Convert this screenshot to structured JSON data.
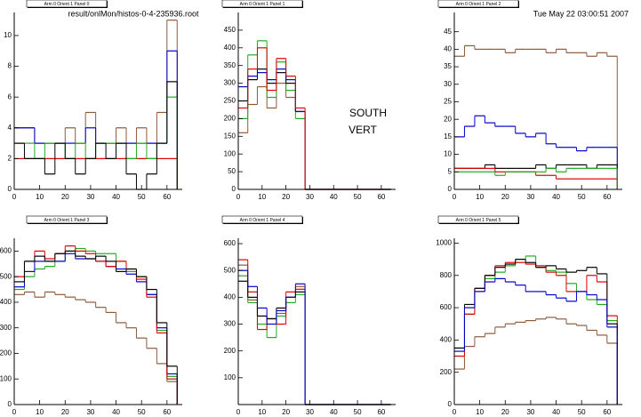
{
  "header": {
    "file": "result/onlMon/histos-0-4-235936.root",
    "timestamp": "Tue May 22 03:00:51 2007"
  },
  "label": {
    "line1": "SOUTH",
    "line2": "VERT"
  },
  "chart_data": [
    {
      "type": "histogram",
      "title": "Arm 0 Orient 1 Panel 0",
      "bins": [
        0,
        4,
        8,
        12,
        16,
        20,
        24,
        28,
        32,
        36,
        40,
        44,
        48,
        52,
        56,
        60,
        64
      ],
      "xlim": [
        0,
        66
      ],
      "xticks": [
        0,
        10,
        20,
        30,
        40,
        50,
        60
      ],
      "ylim": [
        0,
        11.5
      ],
      "yticks": [
        0,
        2,
        4,
        6,
        8,
        10
      ],
      "series": [
        {
          "color": "#8b5a3c",
          "values": [
            4,
            4,
            3,
            3,
            3,
            4,
            3,
            5,
            3,
            3,
            4,
            3,
            4,
            3,
            5,
            11
          ]
        },
        {
          "color": "#0000cc",
          "values": [
            4,
            4,
            3,
            3,
            3,
            3,
            3,
            4,
            3,
            3,
            3,
            3,
            3,
            3,
            3,
            9
          ]
        },
        {
          "color": "#dd0000",
          "values": [
            2,
            2,
            2,
            2,
            2,
            2,
            2,
            2,
            2,
            2,
            2,
            2,
            2,
            2,
            2,
            2
          ]
        },
        {
          "color": "#22aa22",
          "values": [
            3,
            3,
            2,
            3,
            3,
            2,
            3,
            2,
            3,
            3,
            3,
            2,
            3,
            2,
            3,
            6
          ]
        },
        {
          "color": "#000000",
          "values": [
            3,
            2,
            2,
            1,
            3,
            2,
            1,
            2,
            3,
            2,
            3,
            1,
            0,
            1,
            3,
            7
          ]
        }
      ]
    },
    {
      "type": "histogram",
      "title": "Arm 0 Orient 1 Panel 1",
      "bins": [
        0,
        4,
        8,
        12,
        16,
        20,
        24,
        28,
        32,
        36,
        40,
        44,
        48,
        52,
        56,
        60,
        64
      ],
      "xlim": [
        0,
        66
      ],
      "xticks": [
        0,
        10,
        20,
        30,
        40,
        50,
        60
      ],
      "ylim": [
        0,
        500
      ],
      "yticks": [
        0,
        50,
        100,
        150,
        200,
        250,
        300,
        350,
        400,
        450
      ],
      "series": [
        {
          "color": "#8b5a3c",
          "values": [
            160,
            240,
            290,
            230,
            300,
            260,
            220,
            0,
            0,
            0,
            0,
            0,
            0,
            0,
            0,
            0
          ]
        },
        {
          "color": "#22aa22",
          "values": [
            200,
            380,
            420,
            260,
            360,
            280,
            200,
            0,
            0,
            0,
            0,
            0,
            0,
            0,
            0,
            0
          ]
        },
        {
          "color": "#000000",
          "values": [
            250,
            310,
            340,
            300,
            330,
            300,
            220,
            0,
            0,
            0,
            0,
            0,
            0,
            0,
            0,
            0
          ]
        },
        {
          "color": "#0000cc",
          "values": [
            290,
            320,
            330,
            310,
            340,
            310,
            220,
            0,
            0,
            0,
            0,
            0,
            0,
            0,
            0,
            0
          ]
        },
        {
          "color": "#dd0000",
          "values": [
            230,
            340,
            400,
            280,
            370,
            320,
            230,
            0,
            0,
            0,
            0,
            0,
            0,
            0,
            0,
            0
          ]
        }
      ]
    },
    {
      "type": "histogram",
      "title": "Arm 0 Orient 1 Panel 2",
      "bins": [
        0,
        4,
        8,
        12,
        16,
        20,
        24,
        28,
        32,
        36,
        40,
        44,
        48,
        52,
        56,
        60,
        64
      ],
      "xlim": [
        0,
        66
      ],
      "xticks": [
        0,
        10,
        20,
        30,
        40,
        50,
        60
      ],
      "ylim": [
        0,
        50.5
      ],
      "yticks": [
        0,
        5,
        10,
        15,
        20,
        25,
        30,
        35,
        40,
        45
      ],
      "series": [
        {
          "color": "#8b5a3c",
          "values": [
            38,
            41,
            40,
            40,
            40,
            39,
            40,
            40,
            40,
            39,
            40,
            39,
            39,
            38,
            39,
            38
          ]
        },
        {
          "color": "#0000cc",
          "values": [
            15,
            18,
            21,
            19,
            18,
            18,
            16,
            15,
            16,
            13,
            12,
            12,
            11,
            12,
            12,
            12
          ]
        },
        {
          "color": "#000000",
          "values": [
            6,
            6,
            6,
            7,
            6,
            6,
            6,
            6,
            7,
            6,
            7,
            7,
            7,
            6,
            7,
            7
          ]
        },
        {
          "color": "#dd0000",
          "values": [
            6,
            6,
            6,
            6,
            5,
            5,
            5,
            5,
            4,
            4,
            3,
            3,
            3,
            3,
            3,
            3
          ]
        },
        {
          "color": "#22aa22",
          "values": [
            5,
            5,
            5,
            5,
            4,
            5,
            5,
            5,
            5,
            6,
            5,
            6,
            6,
            6,
            6,
            6
          ]
        }
      ]
    },
    {
      "type": "histogram",
      "title": "Arm 0 Orient 1 Panel 3",
      "bins": [
        0,
        4,
        8,
        12,
        16,
        20,
        24,
        28,
        32,
        36,
        40,
        44,
        48,
        52,
        56,
        60,
        64
      ],
      "xlim": [
        0,
        66
      ],
      "xticks": [
        0,
        10,
        20,
        30,
        40,
        50,
        60
      ],
      "ylim": [
        0,
        650
      ],
      "yticks": [
        0,
        100,
        200,
        300,
        400,
        500,
        600
      ],
      "series": [
        {
          "color": "#8b5a3c",
          "values": [
            430,
            440,
            420,
            440,
            430,
            420,
            410,
            400,
            380,
            360,
            320,
            300,
            260,
            220,
            160,
            90
          ]
        },
        {
          "color": "#22aa22",
          "values": [
            450,
            500,
            530,
            540,
            560,
            600,
            610,
            600,
            590,
            590,
            560,
            520,
            500,
            430,
            290,
            110
          ]
        },
        {
          "color": "#0000cc",
          "values": [
            460,
            520,
            560,
            560,
            560,
            590,
            570,
            570,
            560,
            540,
            530,
            510,
            480,
            430,
            300,
            120
          ]
        },
        {
          "color": "#dd0000",
          "values": [
            500,
            560,
            600,
            570,
            590,
            620,
            600,
            590,
            560,
            540,
            560,
            530,
            490,
            420,
            280,
            100
          ]
        },
        {
          "color": "#000000",
          "values": [
            480,
            560,
            580,
            560,
            590,
            600,
            580,
            570,
            580,
            560,
            520,
            530,
            500,
            450,
            320,
            150
          ]
        }
      ]
    },
    {
      "type": "histogram",
      "title": "Arm 0 Orient 1 Panel 4",
      "bins": [
        0,
        4,
        8,
        12,
        16,
        20,
        24,
        28,
        32,
        36,
        40,
        44,
        48,
        52,
        56,
        60,
        64
      ],
      "xlim": [
        0,
        66
      ],
      "xticks": [
        0,
        10,
        20,
        30,
        40,
        50,
        60
      ],
      "ylim": [
        0,
        620
      ],
      "yticks": [
        100,
        200,
        300,
        400,
        500,
        600
      ],
      "series": [
        {
          "color": "#8b5a3c",
          "values": [
            520,
            390,
            330,
            320,
            340,
            400,
            440,
            0,
            0,
            0,
            0,
            0,
            0,
            0,
            0,
            0
          ]
        },
        {
          "color": "#22aa22",
          "values": [
            480,
            380,
            300,
            250,
            330,
            380,
            410,
            0,
            0,
            0,
            0,
            0,
            0,
            0,
            0,
            0
          ]
        },
        {
          "color": "#dd0000",
          "values": [
            540,
            420,
            280,
            320,
            300,
            420,
            430,
            0,
            0,
            0,
            0,
            0,
            0,
            0,
            0,
            0
          ]
        },
        {
          "color": "#000000",
          "values": [
            460,
            400,
            330,
            320,
            360,
            400,
            420,
            0,
            0,
            0,
            0,
            0,
            0,
            0,
            0,
            0
          ]
        },
        {
          "color": "#0000cc",
          "values": [
            500,
            440,
            360,
            300,
            350,
            400,
            450,
            0,
            0,
            0,
            0,
            0,
            0,
            0,
            0,
            0
          ]
        }
      ]
    },
    {
      "type": "histogram",
      "title": "Arm 0 Orient 1 Panel 5",
      "bins": [
        0,
        4,
        8,
        12,
        16,
        20,
        24,
        28,
        32,
        36,
        40,
        44,
        48,
        52,
        56,
        60,
        64
      ],
      "xlim": [
        0,
        66
      ],
      "xticks": [
        0,
        10,
        20,
        30,
        40,
        50,
        60
      ],
      "ylim": [
        0,
        1030
      ],
      "yticks": [
        0,
        200,
        400,
        600,
        800,
        1000
      ],
      "series": [
        {
          "color": "#8b5a3c",
          "values": [
            220,
            360,
            420,
            440,
            480,
            500,
            510,
            520,
            530,
            540,
            530,
            500,
            490,
            460,
            430,
            380
          ]
        },
        {
          "color": "#22aa22",
          "values": [
            350,
            560,
            700,
            780,
            820,
            860,
            900,
            920,
            850,
            830,
            820,
            750,
            700,
            650,
            620,
            520
          ]
        },
        {
          "color": "#dd0000",
          "values": [
            300,
            560,
            720,
            800,
            860,
            880,
            880,
            870,
            860,
            820,
            800,
            700,
            700,
            800,
            760,
            550
          ]
        },
        {
          "color": "#000000",
          "values": [
            350,
            620,
            720,
            800,
            850,
            870,
            900,
            880,
            850,
            860,
            840,
            820,
            830,
            850,
            810,
            500
          ]
        },
        {
          "color": "#0000cc",
          "values": [
            330,
            600,
            700,
            760,
            780,
            760,
            740,
            700,
            700,
            680,
            660,
            640,
            700,
            680,
            650,
            480
          ]
        }
      ]
    }
  ]
}
